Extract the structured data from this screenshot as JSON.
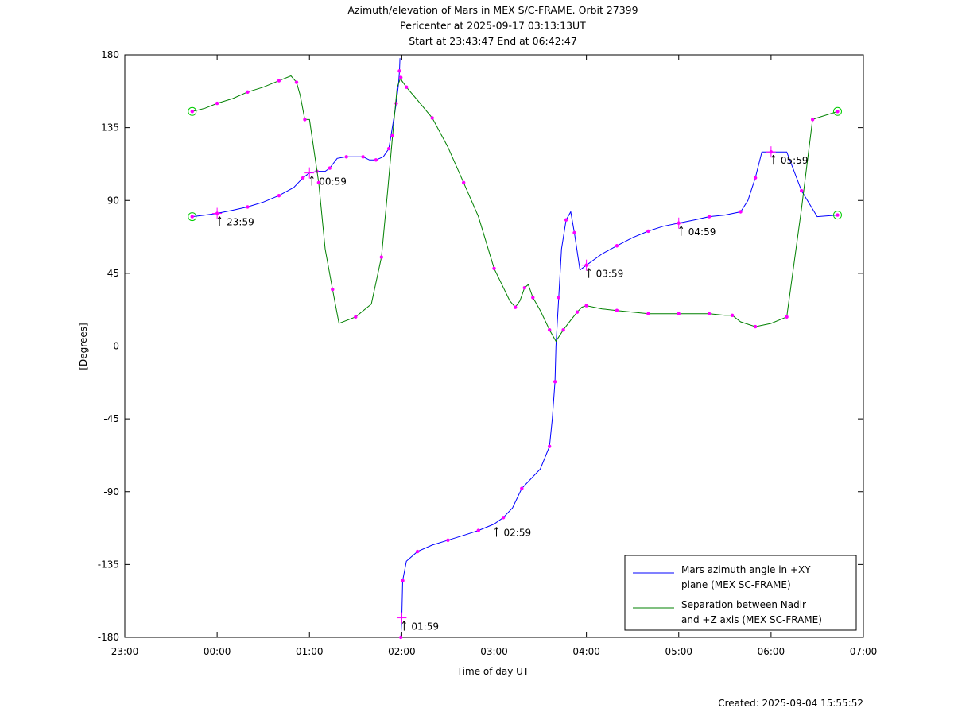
{
  "chart_data": {
    "type": "line",
    "title": [
      "Azimuth/elevation of Mars in MEX S/C-FRAME.  Orbit 27399",
      "Pericenter at 2025-09-17 03:13:13UT",
      "Start at 23:43:47 End at 06:42:47"
    ],
    "xlabel": "Time of day UT",
    "ylabel": "[Degrees]",
    "xlim": [
      -1.0,
      7.0
    ],
    "ylim": [
      -180,
      180
    ],
    "x_ticks": [
      -1,
      0,
      1,
      2,
      3,
      4,
      5,
      6,
      7
    ],
    "x_tick_labels": [
      "23:00",
      "00:00",
      "01:00",
      "02:00",
      "03:00",
      "04:00",
      "05:00",
      "06:00",
      "07:00"
    ],
    "y_ticks": [
      180,
      135,
      90,
      45,
      0,
      -45,
      -90,
      -135,
      -180
    ],
    "y_tick_labels": [
      "180",
      "135",
      "90",
      "45",
      "0",
      "-45",
      "-90",
      "-135",
      "-180"
    ],
    "grid": false,
    "legend_position": "bottom-right",
    "series": [
      {
        "name": "Mars azimuth angle in +XY plane (MEX SC-FRAME)",
        "legend_lines": [
          "Mars azimuth angle in +XY",
          "plane (MEX SC-FRAME)"
        ],
        "color": "#0000ff",
        "x": [
          -0.27,
          -0.13,
          0.0,
          0.17,
          0.33,
          0.5,
          0.67,
          0.83,
          0.93,
          1.0,
          1.08,
          1.17,
          1.22,
          1.3,
          1.4,
          1.5,
          1.58,
          1.65,
          1.72,
          1.8,
          1.86,
          1.9,
          1.94,
          1.965,
          1.975,
          1.98,
          1.99,
          2.0,
          2.01,
          2.05,
          2.17,
          2.33,
          2.5,
          2.67,
          2.83,
          3.0,
          3.1,
          3.2,
          3.3,
          3.5,
          3.6,
          3.63,
          3.66,
          3.67,
          3.7,
          3.73,
          3.78,
          3.83,
          3.87,
          3.93,
          4.0,
          4.17,
          4.33,
          4.5,
          4.67,
          4.83,
          5.0,
          5.17,
          5.33,
          5.5,
          5.67,
          5.75,
          5.83,
          5.9,
          6.0,
          6.17,
          6.33,
          6.5,
          6.72
        ],
        "y": [
          80,
          81,
          82,
          84,
          86,
          89,
          93,
          98,
          104,
          107,
          108,
          108,
          110,
          116,
          117,
          117,
          117,
          115,
          115,
          117,
          122,
          136,
          150,
          162,
          170,
          178,
          -180,
          -168,
          -145,
          -133,
          -127,
          -123,
          -120,
          -117,
          -114,
          -110,
          -106,
          -100,
          -88,
          -76,
          -62,
          -45,
          -22,
          0,
          30,
          60,
          78,
          83,
          70,
          47,
          50,
          57,
          62,
          67,
          71,
          74,
          76,
          78,
          80,
          81,
          83,
          90,
          104,
          120,
          120,
          120,
          96,
          80,
          81
        ]
      },
      {
        "name": "Separation between Nadir and +Z axis (MEX SC-FRAME)",
        "legend_lines": [
          "Separation between Nadir",
          "and +Z axis (MEX SC-FRAME)"
        ],
        "color": "#008000",
        "x": [
          -0.27,
          -0.13,
          0.0,
          0.17,
          0.33,
          0.5,
          0.67,
          0.8,
          0.86,
          0.9,
          0.95,
          1.0,
          1.1,
          1.17,
          1.25,
          1.32,
          1.5,
          1.67,
          1.78,
          1.85,
          1.9,
          1.95,
          1.99,
          2.0,
          2.05,
          2.17,
          2.33,
          2.5,
          2.67,
          2.83,
          3.0,
          3.17,
          3.23,
          3.28,
          3.33,
          3.37,
          3.42,
          3.5,
          3.6,
          3.67,
          3.75,
          3.83,
          3.9,
          3.95,
          4.0,
          4.17,
          4.33,
          4.5,
          4.67,
          4.83,
          5.0,
          5.17,
          5.33,
          5.5,
          5.58,
          5.67,
          5.83,
          6.0,
          6.17,
          6.33,
          6.45,
          6.5,
          6.72
        ],
        "y": [
          145,
          147,
          150,
          153,
          157,
          160,
          164,
          167,
          163,
          155,
          140,
          140,
          101,
          60,
          35,
          14,
          18,
          26,
          55,
          98,
          130,
          160,
          166,
          164,
          160,
          152,
          141,
          123,
          101,
          80,
          48,
          28,
          24,
          28,
          36,
          38,
          30,
          22,
          10,
          3,
          10,
          16,
          21,
          24,
          25,
          23,
          22,
          21,
          20,
          20,
          20,
          20,
          20,
          19,
          19,
          15,
          12,
          14,
          18,
          85,
          140,
          141,
          145
        ]
      }
    ],
    "time_markers": [
      {
        "label": "23:59",
        "x": 0.0,
        "y": 82
      },
      {
        "label": "00:59",
        "x": 1.0,
        "y": 107
      },
      {
        "label": "01:59",
        "x": 2.0,
        "y": -168
      },
      {
        "label": "02:59",
        "x": 3.0,
        "y": -110
      },
      {
        "label": "03:59",
        "x": 4.0,
        "y": 50
      },
      {
        "label": "04:59",
        "x": 5.0,
        "y": 76
      },
      {
        "label": "05:59",
        "x": 6.0,
        "y": 120
      }
    ],
    "annotations": [
      "Created: 2025-09-04 15:55:52"
    ]
  },
  "footer": {
    "created": "Created: 2025-09-04 15:55:52"
  },
  "colors": {
    "azimuth": "#0000ff",
    "separation": "#008000",
    "markers": "#ff00ff",
    "endpoints": "#00cc00"
  }
}
